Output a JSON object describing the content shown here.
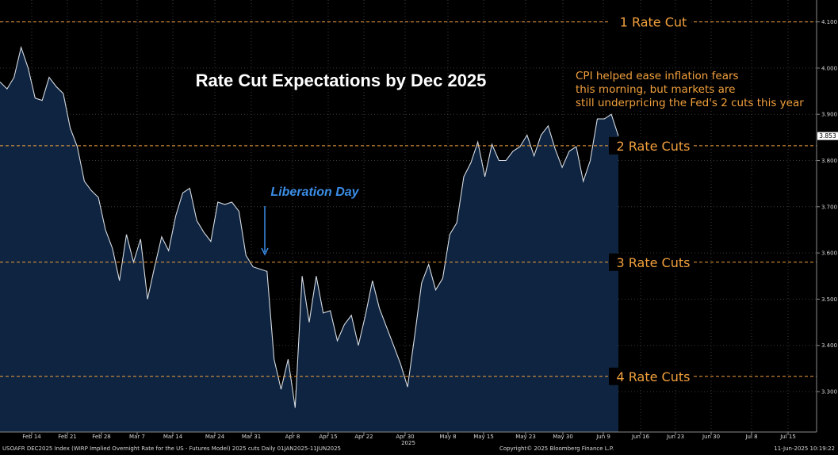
{
  "chart_data": {
    "type": "area",
    "title": "Rate Cut Expectations by Dec 2025",
    "annotation_note": "CPI helped ease inflation fears this morning, but markets are still underpricing the Fed's 2 cuts this year",
    "event_label": "Liberation Day",
    "event_date": "2025-04-02",
    "last_value_label": "3.853",
    "y_ticks": [
      "3.300",
      "3.400",
      "3.500",
      "3.600",
      "3.700",
      "3.800",
      "3.900",
      "4.000",
      "4.100"
    ],
    "ylim": [
      3.21,
      4.17
    ],
    "x_ticks": [
      "Feb 14",
      "Feb 21",
      "Feb 28",
      "Mar 7",
      "Mar 14",
      "Mar 24",
      "Mar 31",
      "Apr 8",
      "Apr 15",
      "Apr 22",
      "Apr 30",
      "May 8",
      "May 15",
      "May 23",
      "May 30",
      "Jun 9",
      "Jun 16",
      "Jun 23",
      "Jun 30",
      "Jul 8",
      "Jul 15"
    ],
    "year_label": "2025",
    "reference_lines": [
      {
        "label": "1 Rate Cut",
        "value": 4.1
      },
      {
        "label": "2 Rate Cuts",
        "value": 3.832
      },
      {
        "label": "3 Rate Cuts",
        "value": 3.58
      },
      {
        "label": "4 Rate Cuts",
        "value": 3.333
      }
    ],
    "values": [
      3.97,
      3.955,
      3.98,
      4.045,
      4.0,
      3.935,
      3.93,
      3.98,
      3.96,
      3.945,
      3.87,
      3.83,
      3.755,
      3.735,
      3.72,
      3.65,
      3.61,
      3.54,
      3.64,
      3.58,
      3.63,
      3.5,
      3.57,
      3.635,
      3.605,
      3.68,
      3.73,
      3.74,
      3.67,
      3.645,
      3.625,
      3.71,
      3.705,
      3.71,
      3.69,
      3.595,
      3.57,
      3.565,
      3.56,
      3.37,
      3.305,
      3.37,
      3.265,
      3.55,
      3.45,
      3.55,
      3.47,
      3.475,
      3.41,
      3.445,
      3.465,
      3.4,
      3.465,
      3.54,
      3.48,
      3.44,
      3.4,
      3.36,
      3.31,
      3.42,
      3.535,
      3.575,
      3.52,
      3.545,
      3.64,
      3.665,
      3.765,
      3.795,
      3.84,
      3.765,
      3.835,
      3.8,
      3.8,
      3.82,
      3.83,
      3.855,
      3.81,
      3.855,
      3.875,
      3.825,
      3.785,
      3.82,
      3.83,
      3.755,
      3.8,
      3.89,
      3.89,
      3.9,
      3.853
    ],
    "colors": {
      "fill": "#0e2440",
      "line": "#d6dbe2",
      "reference": "#f2a03d",
      "event": "#3b8ee8",
      "grid": "#3a3a3a"
    }
  },
  "footer": {
    "left": "USOAFR DEC2025 Index (WIRP Implied Overnight Rate for the US - Futures Model) 2025 cuts  Daily 01JAN2025-11JUN2025",
    "center": "Copyright© 2025 Bloomberg Finance L.P.",
    "right": "11-Jun-2025 10:19:22"
  }
}
